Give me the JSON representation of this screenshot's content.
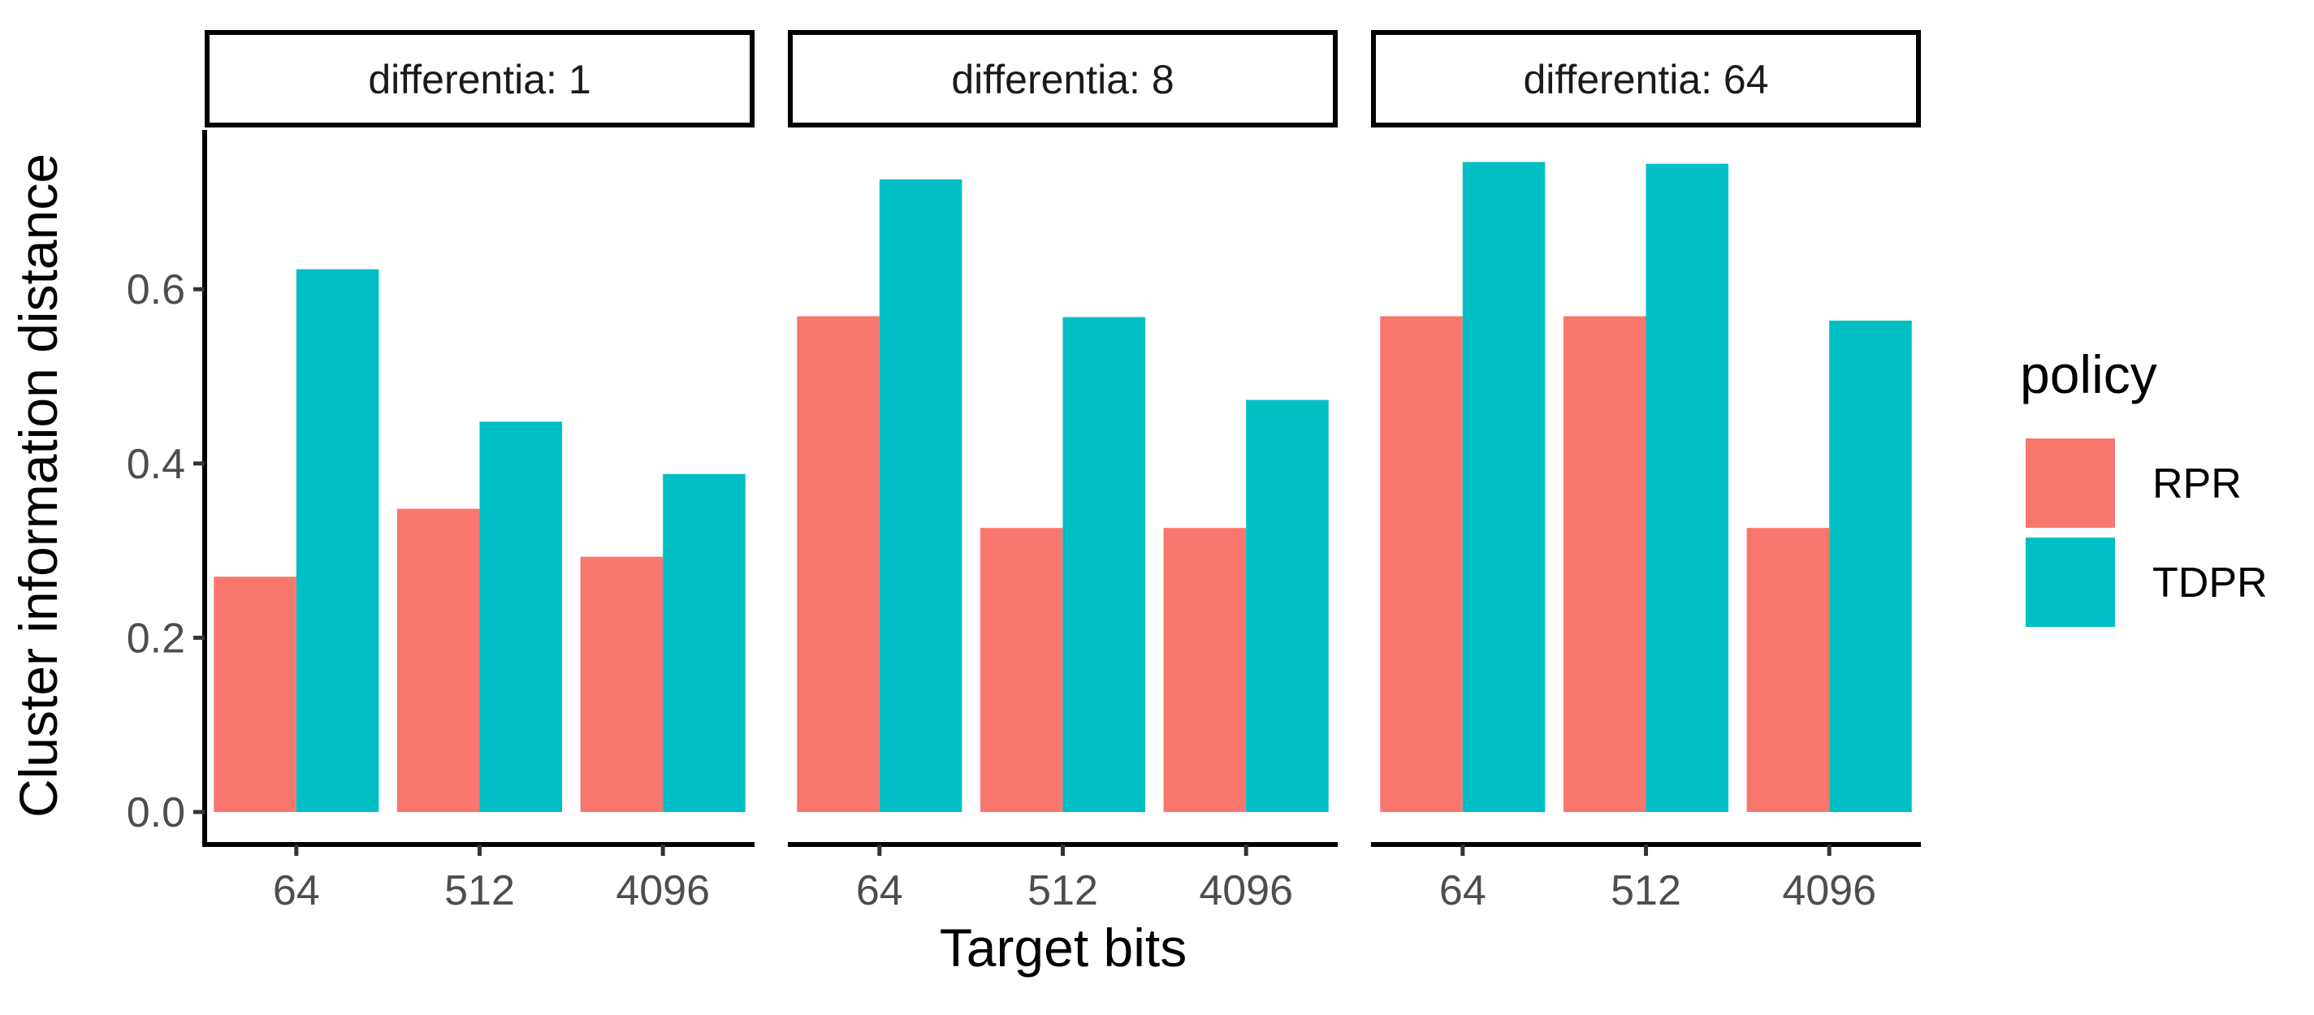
{
  "chart_data": {
    "type": "bar",
    "xlabel": "Target bits",
    "ylabel": "Cluster information distance",
    "ylim": [
      0,
      0.77
    ],
    "yticks": [
      "0.0",
      "0.2",
      "0.4",
      "0.6"
    ],
    "ytick_values": [
      0.0,
      0.2,
      0.4,
      0.6
    ],
    "categories": [
      "64",
      "512",
      "4096"
    ],
    "grid": false,
    "legend": {
      "title": "policy",
      "position": "right",
      "entries": [
        "RPR",
        "TDPR"
      ]
    },
    "colors": {
      "RPR": "#F8766D",
      "TDPR": "#00BFC4"
    },
    "facets": [
      {
        "label": "differentia: 1",
        "series": [
          {
            "name": "RPR",
            "values": [
              0.27,
              0.348,
              0.293
            ]
          },
          {
            "name": "TDPR",
            "values": [
              0.623,
              0.448,
              0.388
            ]
          }
        ]
      },
      {
        "label": "differentia: 8",
        "series": [
          {
            "name": "RPR",
            "values": [
              0.569,
              0.326,
              0.326
            ]
          },
          {
            "name": "TDPR",
            "values": [
              0.726,
              0.568,
              0.473
            ]
          }
        ]
      },
      {
        "label": "differentia: 64",
        "series": [
          {
            "name": "RPR",
            "values": [
              0.569,
              0.569,
              0.326
            ]
          },
          {
            "name": "TDPR",
            "values": [
              0.746,
              0.744,
              0.564
            ]
          }
        ]
      }
    ]
  }
}
